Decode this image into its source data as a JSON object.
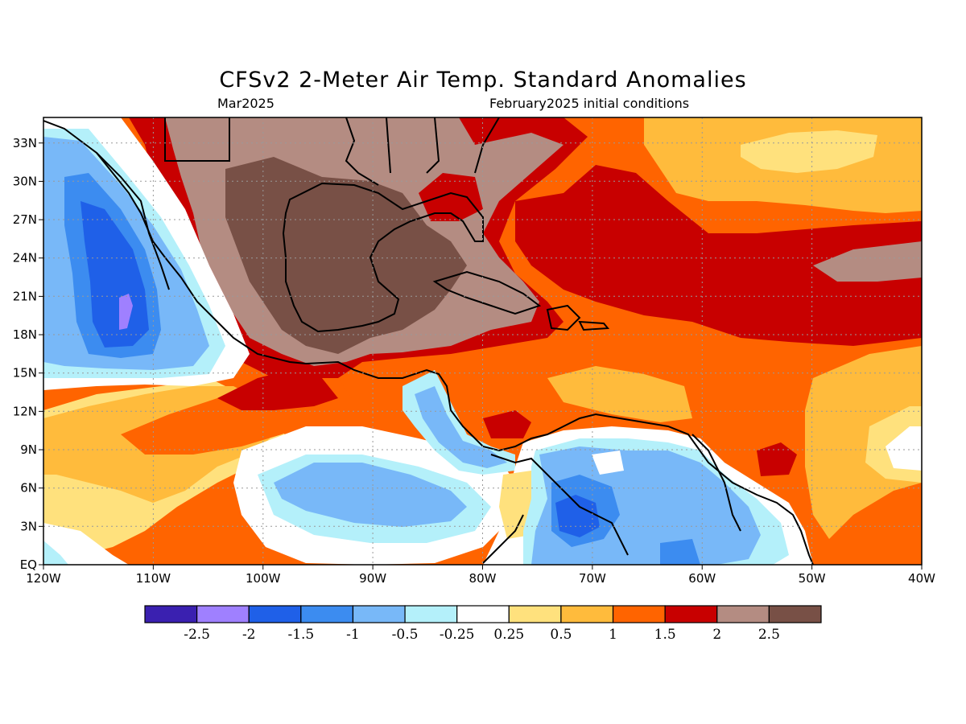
{
  "title": "CFSv2 2-Meter Air Temp. Standard Anomalies",
  "valid_month": "Mar2025",
  "initial_conditions": "February2025 initial conditions",
  "map": {
    "lon_range": [
      -120,
      -40
    ],
    "lat_range": [
      0,
      35
    ],
    "lon_ticks": [
      {
        "value": -120,
        "label": "120W"
      },
      {
        "value": -110,
        "label": "110W"
      },
      {
        "value": -100,
        "label": "100W"
      },
      {
        "value": -90,
        "label": "90W"
      },
      {
        "value": -80,
        "label": "80W"
      },
      {
        "value": -70,
        "label": "70W"
      },
      {
        "value": -60,
        "label": "60W"
      },
      {
        "value": -50,
        "label": "50W"
      },
      {
        "value": -40,
        "label": "40W"
      }
    ],
    "lat_ticks": [
      {
        "value": 0,
        "label": "EQ"
      },
      {
        "value": 3,
        "label": "3N"
      },
      {
        "value": 6,
        "label": "6N"
      },
      {
        "value": 9,
        "label": "9N"
      },
      {
        "value": 12,
        "label": "12N"
      },
      {
        "value": 15,
        "label": "15N"
      },
      {
        "value": 18,
        "label": "18N"
      },
      {
        "value": 21,
        "label": "21N"
      },
      {
        "value": 24,
        "label": "24N"
      },
      {
        "value": 27,
        "label": "27N"
      },
      {
        "value": 30,
        "label": "30N"
      },
      {
        "value": 33,
        "label": "33N"
      }
    ]
  },
  "colorbar": {
    "colors": [
      "#3a20b0",
      "#9f80ff",
      "#1f60e8",
      "#3c8cf0",
      "#78b8f8",
      "#b4f0fa",
      "#ffffff",
      "#ffe17d",
      "#ffbb3c",
      "#ff6400",
      "#c80000",
      "#b48c82",
      "#785046"
    ],
    "labels": [
      "-2.5",
      "-2",
      "-1.5",
      "-1",
      "-0.5",
      "-0.25",
      "0.25",
      "0.5",
      "1",
      "1.5",
      "2",
      "2.5"
    ]
  }
}
